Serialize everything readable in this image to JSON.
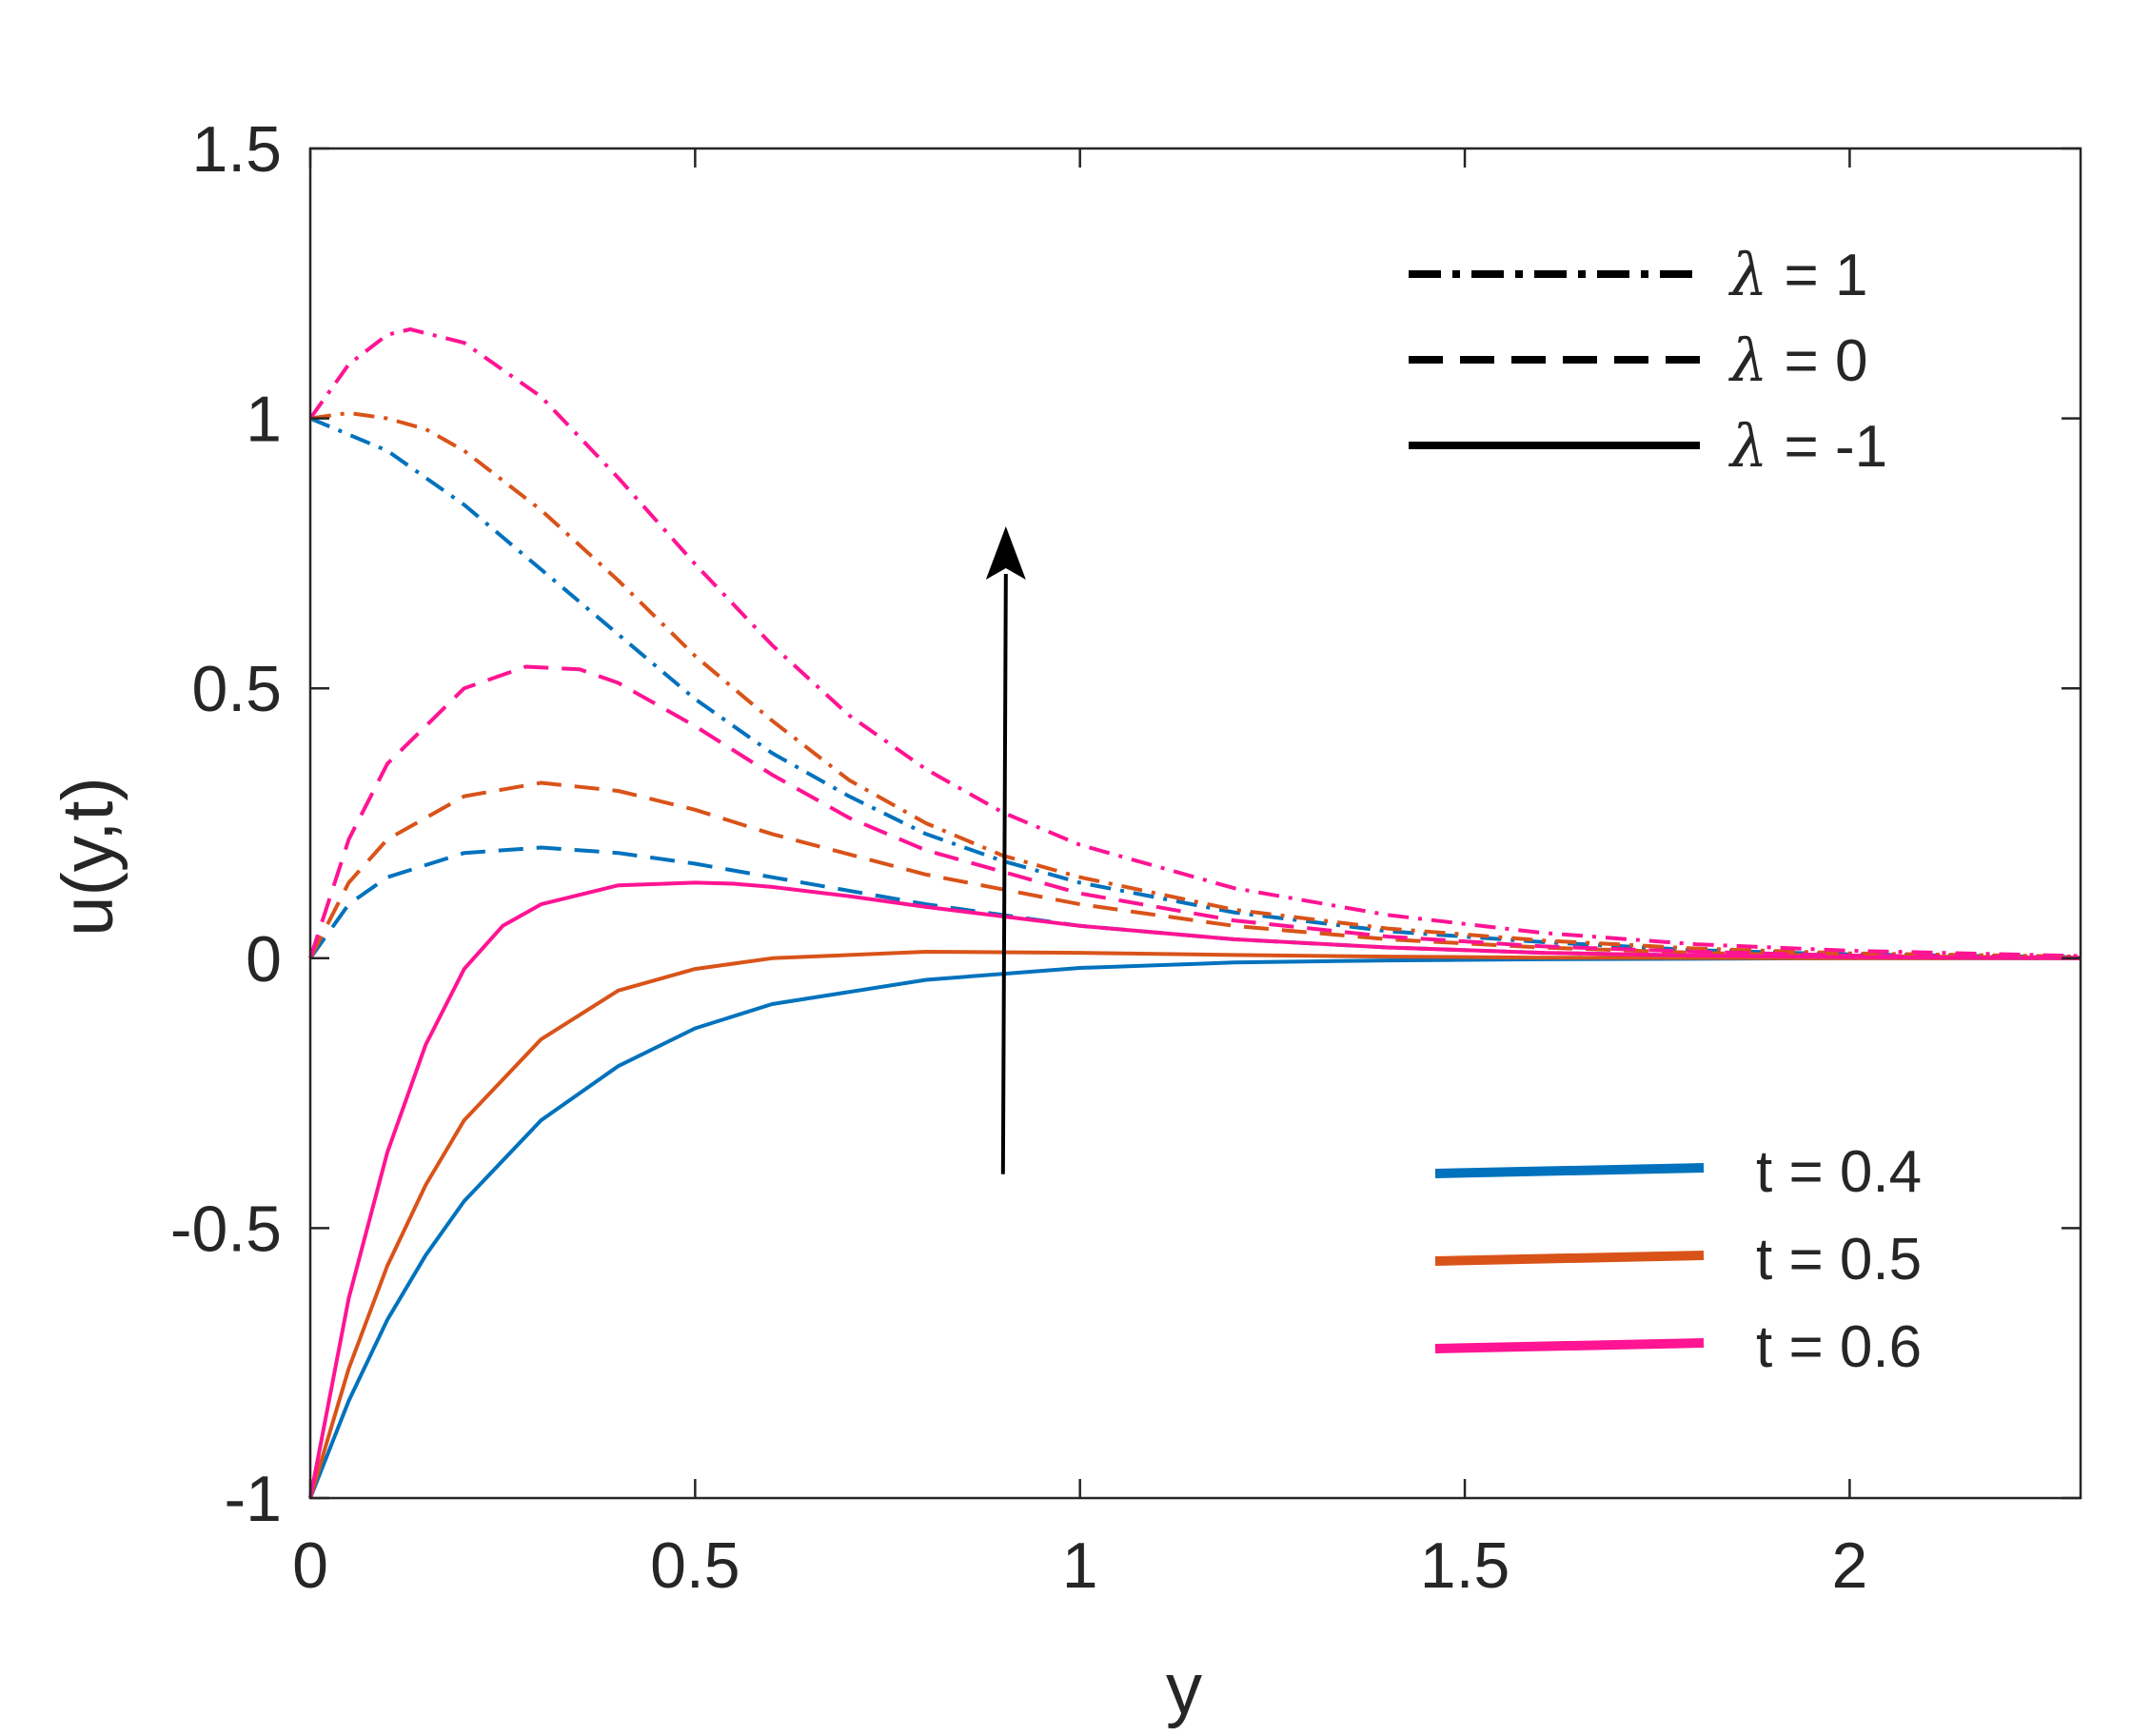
{
  "chart_data": {
    "type": "line",
    "xlabel": "y",
    "ylabel": "u(y,t)",
    "xlim": [
      0,
      2.3
    ],
    "ylim": [
      -1,
      1.5
    ],
    "xticks": [
      0,
      0.5,
      1,
      1.5,
      2
    ],
    "xtick_labels": [
      "0",
      "0.5",
      "1",
      "1.5",
      "2"
    ],
    "yticks": [
      -1,
      -0.5,
      0,
      0.5,
      1,
      1.5
    ],
    "ytick_labels": [
      "-1",
      "-0.5",
      "0",
      "0.5",
      "1",
      "1.5"
    ],
    "grid": false,
    "colors": {
      "t04": "#0072BD",
      "t05": "#D95319",
      "t06": "#FF1493",
      "axis": "#262626",
      "legend": "#000000"
    },
    "legend_styles": [
      {
        "symbol": "λ",
        "text": " = 1",
        "dash": "dashdot"
      },
      {
        "symbol": "λ",
        "text": " = 0",
        "dash": "dashed"
      },
      {
        "symbol": "λ",
        "text": " = -1",
        "dash": "solid"
      }
    ],
    "legend_styles_placement": "top-right",
    "legend_colors": [
      {
        "text": "t = 0.4",
        "color_key": "t04"
      },
      {
        "text": "t = 0.5",
        "color_key": "t05"
      },
      {
        "text": "t = 0.6",
        "color_key": "t06"
      }
    ],
    "legend_colors_placement": "bottom-right",
    "annotation_arrow": {
      "x": 0.9,
      "y_from": -0.4,
      "y_to": 0.8
    },
    "series": [
      {
        "t": 0.4,
        "lambda": 1,
        "color_key": "t04",
        "dash": "dashdot",
        "x": [
          0,
          0.05,
          0.1,
          0.2,
          0.3,
          0.4,
          0.5,
          0.6,
          0.7,
          0.8,
          0.9,
          1.0,
          1.2,
          1.4,
          1.6,
          1.8,
          2.0,
          2.3
        ],
        "y": [
          1,
          0.97,
          0.94,
          0.84,
          0.72,
          0.6,
          0.48,
          0.38,
          0.3,
          0.23,
          0.18,
          0.14,
          0.085,
          0.05,
          0.03,
          0.015,
          0.007,
          0.002
        ]
      },
      {
        "t": 0.5,
        "lambda": 1,
        "color_key": "t05",
        "dash": "dashdot",
        "x": [
          0,
          0.05,
          0.1,
          0.15,
          0.2,
          0.3,
          0.4,
          0.5,
          0.6,
          0.7,
          0.8,
          0.9,
          1.0,
          1.2,
          1.4,
          1.6,
          1.8,
          2.0,
          2.3
        ],
        "y": [
          1,
          1.01,
          1.0,
          0.98,
          0.94,
          0.83,
          0.7,
          0.56,
          0.44,
          0.33,
          0.25,
          0.19,
          0.15,
          0.09,
          0.055,
          0.033,
          0.018,
          0.009,
          0.003
        ]
      },
      {
        "t": 0.6,
        "lambda": 1,
        "color_key": "t06",
        "dash": "dashdot",
        "x": [
          0,
          0.05,
          0.1,
          0.13,
          0.2,
          0.3,
          0.4,
          0.5,
          0.6,
          0.7,
          0.8,
          0.9,
          1.0,
          1.2,
          1.4,
          1.6,
          1.8,
          2.0,
          2.3
        ],
        "y": [
          1,
          1.1,
          1.155,
          1.165,
          1.14,
          1.04,
          0.89,
          0.73,
          0.58,
          0.45,
          0.35,
          0.27,
          0.21,
          0.13,
          0.08,
          0.047,
          0.026,
          0.014,
          0.004
        ]
      },
      {
        "t": 0.4,
        "lambda": 0,
        "color_key": "t04",
        "dash": "dashed",
        "x": [
          0,
          0.05,
          0.1,
          0.2,
          0.3,
          0.4,
          0.5,
          0.6,
          0.8,
          1.0,
          1.2,
          1.4,
          1.6,
          1.8,
          2.0,
          2.3
        ],
        "y": [
          0,
          0.1,
          0.15,
          0.195,
          0.205,
          0.195,
          0.175,
          0.15,
          0.1,
          0.06,
          0.035,
          0.02,
          0.01,
          0.005,
          0.002,
          0.0
        ]
      },
      {
        "t": 0.5,
        "lambda": 0,
        "color_key": "t05",
        "dash": "dashed",
        "x": [
          0,
          0.05,
          0.1,
          0.2,
          0.3,
          0.4,
          0.5,
          0.6,
          0.8,
          1.0,
          1.2,
          1.4,
          1.6,
          1.8,
          2.0,
          2.3
        ],
        "y": [
          0,
          0.14,
          0.22,
          0.3,
          0.325,
          0.31,
          0.275,
          0.23,
          0.155,
          0.1,
          0.06,
          0.035,
          0.02,
          0.01,
          0.004,
          0.001
        ]
      },
      {
        "t": 0.6,
        "lambda": 0,
        "color_key": "t06",
        "dash": "dashed",
        "x": [
          0,
          0.05,
          0.1,
          0.2,
          0.28,
          0.35,
          0.4,
          0.5,
          0.6,
          0.7,
          0.8,
          1.0,
          1.2,
          1.4,
          1.6,
          1.8,
          2.0,
          2.3
        ],
        "y": [
          0,
          0.22,
          0.36,
          0.5,
          0.54,
          0.535,
          0.51,
          0.43,
          0.34,
          0.26,
          0.2,
          0.12,
          0.07,
          0.04,
          0.022,
          0.012,
          0.005,
          0.001
        ]
      },
      {
        "t": 0.4,
        "lambda": -1,
        "color_key": "t04",
        "dash": "solid",
        "x": [
          0,
          0.05,
          0.1,
          0.15,
          0.2,
          0.3,
          0.4,
          0.5,
          0.6,
          0.8,
          1.0,
          1.2,
          1.4,
          1.6,
          2.0,
          2.3
        ],
        "y": [
          -1,
          -0.82,
          -0.67,
          -0.55,
          -0.45,
          -0.3,
          -0.2,
          -0.13,
          -0.085,
          -0.04,
          -0.018,
          -0.008,
          -0.004,
          -0.002,
          0,
          0
        ]
      },
      {
        "t": 0.5,
        "lambda": -1,
        "color_key": "t05",
        "dash": "solid",
        "x": [
          0,
          0.05,
          0.1,
          0.15,
          0.2,
          0.3,
          0.4,
          0.5,
          0.6,
          0.8,
          1.0,
          1.2,
          1.4,
          1.6,
          2.0,
          2.3
        ],
        "y": [
          -1,
          -0.76,
          -0.57,
          -0.42,
          -0.3,
          -0.15,
          -0.06,
          -0.02,
          0.0,
          0.012,
          0.01,
          0.006,
          0.003,
          0.001,
          0,
          0
        ]
      },
      {
        "t": 0.6,
        "lambda": -1,
        "color_key": "t06",
        "dash": "solid",
        "x": [
          0,
          0.05,
          0.1,
          0.15,
          0.2,
          0.25,
          0.3,
          0.4,
          0.5,
          0.55,
          0.6,
          0.7,
          0.8,
          1.0,
          1.2,
          1.4,
          1.6,
          1.8,
          2.0,
          2.3
        ],
        "y": [
          -1,
          -0.63,
          -0.36,
          -0.16,
          -0.02,
          0.06,
          0.1,
          0.135,
          0.14,
          0.138,
          0.132,
          0.115,
          0.095,
          0.06,
          0.035,
          0.02,
          0.01,
          0.005,
          0.002,
          0
        ]
      }
    ]
  }
}
